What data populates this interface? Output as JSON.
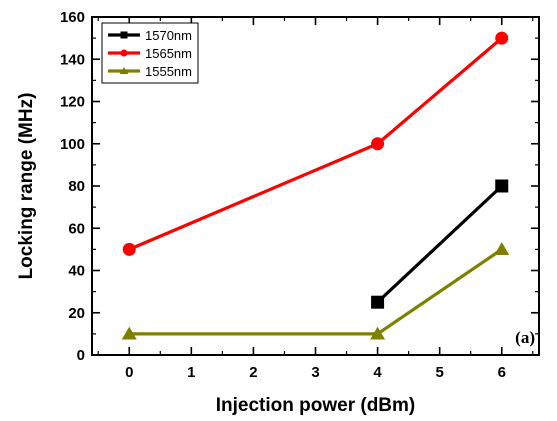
{
  "chart_data": {
    "type": "line",
    "xlabel": "Injection power (dBm)",
    "ylabel": "Locking range (MHz)",
    "xlim": [
      -0.6,
      6.6
    ],
    "ylim": [
      0,
      160
    ],
    "x_ticks": [
      0,
      1,
      2,
      3,
      4,
      5,
      6
    ],
    "y_ticks": [
      0,
      20,
      40,
      60,
      80,
      100,
      120,
      140,
      160
    ],
    "grid": false,
    "legend_position": "top-left",
    "annotation": "(a)",
    "series": [
      {
        "name": "1570nm",
        "color": "#000000",
        "marker": "square",
        "x": [
          4,
          6
        ],
        "y": [
          25,
          80
        ]
      },
      {
        "name": "1565nm",
        "color": "#ff0000",
        "marker": "circle",
        "x": [
          0,
          4,
          6
        ],
        "y": [
          50,
          100,
          150
        ]
      },
      {
        "name": "1555nm",
        "color": "#808000",
        "marker": "triangle",
        "x": [
          0,
          4,
          6
        ],
        "y": [
          10,
          10,
          50
        ]
      }
    ]
  }
}
